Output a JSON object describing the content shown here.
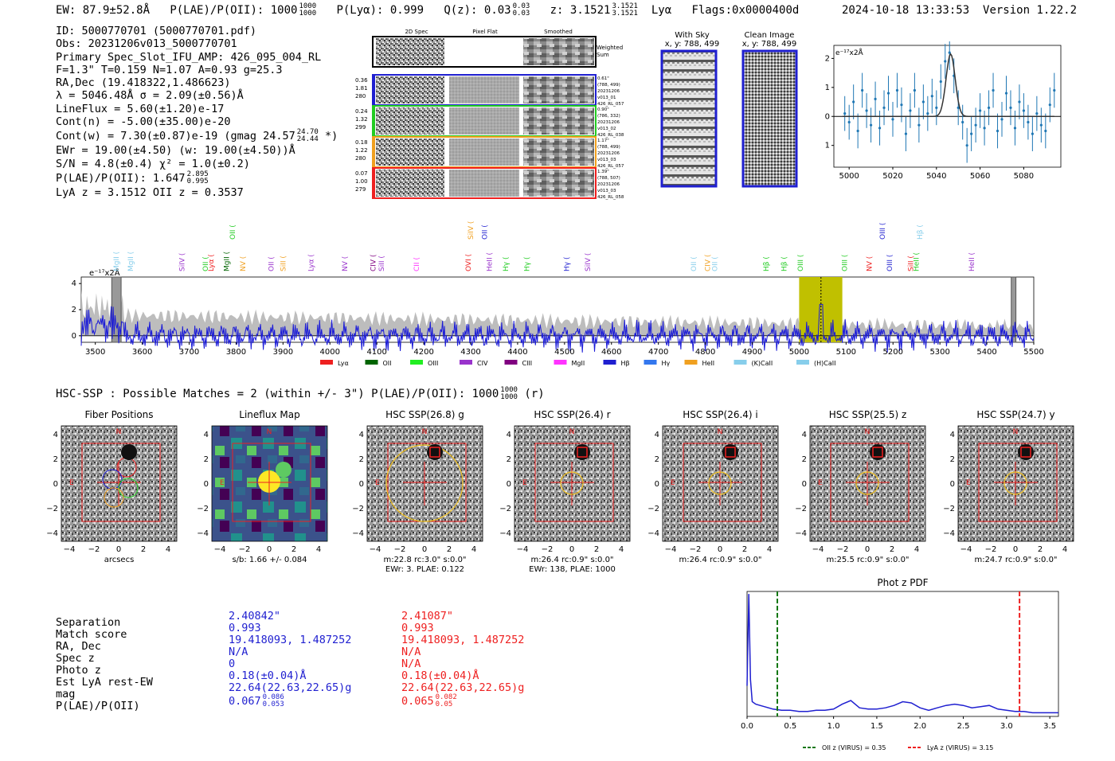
{
  "header": {
    "ew": "EW: 87.9±52.8Å",
    "plae": "P(LAE)/P(OII): 1000",
    "plae_hi": "1000",
    "plae_lo": "1000",
    "plya": "P(Lyα): 0.999",
    "qz": "Q(z): 0.03",
    "qz_hi": "0.03",
    "qz_lo": "0.03",
    "z": "z: 3.1521",
    "z_hi": "3.1521",
    "z_lo": "3.1521",
    "line": "Lyα",
    "flags": "Flags:0x0000400d",
    "timestamp": "2024-10-18 13:33:53",
    "version": "Version 1.22.2"
  },
  "info": {
    "id": "ID: 5000770701 (5000770701.pdf)",
    "obs": "Obs: 20231206v013_5000770701",
    "primary": "Primary Spec_Slot_IFU_AMP: 426_095_004_RL",
    "params": "F=1.3\"  T=0.159  N=1.07  A=0.93  g=25.3",
    "radec": "RA,Dec (19.418322,1.486623)",
    "lambda": "λ = 5046.48Å  σ = 2.09(±0.56)Å",
    "lineflux": "LineFlux = 5.60(±1.20)e-17",
    "contn": "Cont(n) = -5.00(±35.00)e-20",
    "contw": "Cont(w) = 7.30(±0.87)e-19 (gmag 24.57",
    "contw_hi": "24.70",
    "contw_lo": "24.44",
    "contw_end": "*)",
    "ewr": "EWr = 19.00(±4.50) (w: 19.00(±4.50))Å",
    "sn": "S/N = 4.8(±0.4)  χ² = 1.0(±0.2)",
    "plae": "P(LAE)/P(OII): 1.647",
    "plae_hi": "2.895",
    "plae_lo": "0.995",
    "lyaz": "LyA z = 3.1512   OII z = 0.3537"
  },
  "cutouts": {
    "col_2d": "2D Spec",
    "col_flat": "Pixel Flat",
    "col_smooth": "Smoothed",
    "weighted": [
      "Weighted",
      "Sum"
    ],
    "rows": [
      {
        "left": [
          "0.36",
          "1.81",
          "280"
        ],
        "right": [
          "0.61\"",
          "(788, 499)",
          "20231206",
          "v013_01",
          "426_RL_057"
        ],
        "color": "#1f1fd0"
      },
      {
        "left": [
          "0.24",
          "1.32",
          "299"
        ],
        "right": [
          "0.90\"",
          "(786, 332)",
          "20231206",
          "v013_02",
          "426_RL_038"
        ],
        "color": "#22cc22"
      },
      {
        "left": [
          "0.18",
          "1.22",
          "280"
        ],
        "right": [
          "1.17\"",
          "(788, 499)",
          "20231206",
          "v013_03",
          "426_RL_057"
        ],
        "color": "#f0a020"
      },
      {
        "left": [
          "0.07",
          "1.00",
          "279"
        ],
        "right": [
          "1.39\"",
          "(788, 507)",
          "20231206",
          "v013_03",
          "426_RL_058"
        ],
        "color": "#ee2020"
      }
    ]
  },
  "sky": {
    "with_sky": "With Sky",
    "with_sky_xy": "x, y: 788, 499",
    "clean": "Clean Image",
    "clean_xy": "x, y: 788, 499"
  },
  "zoom_chart": {
    "type": "line",
    "unit_label": "e⁻¹⁷x2Å",
    "xlim": [
      4993,
      5097
    ],
    "ylim": [
      -1.75,
      2.45
    ],
    "xticks": [
      "5000",
      "5020",
      "5040",
      "5060",
      "5080"
    ],
    "yticks": [
      "2",
      "1",
      "0",
      "−1"
    ],
    "x": [
      4998,
      5000,
      5002,
      5004,
      5006,
      5008,
      5010,
      5012,
      5014,
      5016,
      5018,
      5020,
      5022,
      5024,
      5026,
      5028,
      5030,
      5032,
      5034,
      5036,
      5038,
      5040,
      5042,
      5044,
      5046,
      5048,
      5050,
      5052,
      5054,
      5056,
      5058,
      5060,
      5062,
      5064,
      5066,
      5068,
      5070,
      5072,
      5074,
      5076,
      5078,
      5080,
      5082,
      5084,
      5086,
      5088,
      5090,
      5092,
      5094
    ],
    "y": [
      0.1,
      -0.2,
      0.5,
      -0.5,
      0.9,
      0.2,
      -0.3,
      0.6,
      -0.4,
      0.3,
      0.8,
      -0.1,
      0.9,
      0.4,
      -0.6,
      0.2,
      0.9,
      -0.3,
      0.5,
      0.1,
      0.7,
      0.3,
      1.2,
      1.9,
      2.2,
      1.4,
      0.3,
      -0.2,
      -1.0,
      -0.6,
      -0.3,
      0.2,
      -0.4,
      0.3,
      0.9,
      -0.5,
      -0.1,
      0.8,
      0.3,
      -0.4,
      0.5,
      0.2,
      -0.2,
      -0.6,
      0.1,
      -0.3,
      -0.5,
      0.4,
      0.9
    ],
    "err": [
      0.6,
      0.6,
      0.6,
      0.6,
      0.6,
      0.6,
      0.6,
      0.6,
      0.6,
      0.6,
      0.6,
      0.6,
      0.6,
      0.6,
      0.6,
      0.6,
      0.6,
      0.6,
      0.6,
      0.6,
      0.6,
      0.6,
      0.6,
      0.6,
      0.6,
      0.6,
      0.6,
      0.6,
      0.6,
      0.6,
      0.6,
      0.6,
      0.6,
      0.6,
      0.6,
      0.6,
      0.6,
      0.6,
      0.6,
      0.6,
      0.6,
      0.6,
      0.6,
      0.6,
      0.6,
      0.6,
      0.6,
      0.6,
      0.6
    ],
    "fit_center": 5046.5,
    "fit_sigma": 2.09,
    "fit_amp": 2.15
  },
  "full_spectrum": {
    "type": "line",
    "unit_label": "e⁻¹⁷x2Å",
    "xlim": [
      3470,
      5500
    ],
    "ylim": [
      -0.5,
      4.5
    ],
    "xticks": [
      "3500",
      "3600",
      "3700",
      "3800",
      "3900",
      "4000",
      "4100",
      "4200",
      "4300",
      "4400",
      "4500",
      "4600",
      "4700",
      "4800",
      "4900",
      "5000",
      "5100",
      "5200",
      "5300",
      "5400",
      "5500"
    ],
    "yticks": [
      "4",
      "2",
      "0"
    ],
    "highlight": [
      5000,
      5092
    ],
    "line_marker": 5046.5,
    "masked": [
      [
        3535,
        3555
      ],
      [
        5452,
        5462
      ]
    ],
    "line_labels": [
      {
        "name": "MgII",
        "x": 3550,
        "color": "#87ceeb",
        "tier": 1
      },
      {
        "name": "MgII",
        "x": 3580,
        "color": "#87ceeb",
        "tier": 1
      },
      {
        "name": "SiIV",
        "x": 3690,
        "color": "#9933cc",
        "tier": 1
      },
      {
        "name": "OII",
        "x": 3740,
        "color": "#22cc22",
        "tier": 1
      },
      {
        "name": "Lyα",
        "x": 3752,
        "color": "#ee2020",
        "tier": 1
      },
      {
        "name": "MgII",
        "x": 3785,
        "color": "#006400",
        "tier": 1
      },
      {
        "name": "OII",
        "x": 3798,
        "color": "#22cc22",
        "tier": 0
      },
      {
        "name": "NV",
        "x": 3820,
        "color": "#f0a020",
        "tier": 1
      },
      {
        "name": "OII",
        "x": 3880,
        "color": "#9933cc",
        "tier": 1
      },
      {
        "name": "SiII",
        "x": 3905,
        "color": "#f0a020",
        "tier": 1
      },
      {
        "name": "Lyα",
        "x": 3965,
        "color": "#9933cc",
        "tier": 1
      },
      {
        "name": "NV",
        "x": 4037,
        "color": "#9933cc",
        "tier": 1
      },
      {
        "name": "CIV",
        "x": 4097,
        "color": "#800080",
        "tier": 1
      },
      {
        "name": "SiII",
        "x": 4115,
        "color": "#9933cc",
        "tier": 1
      },
      {
        "name": "CII",
        "x": 4190,
        "color": "#ff33ff",
        "tier": 1
      },
      {
        "name": "OVI",
        "x": 4300,
        "color": "#ee2020",
        "tier": 1
      },
      {
        "name": "SiIV",
        "x": 4305,
        "color": "#f0a020",
        "tier": 0
      },
      {
        "name": "OII",
        "x": 4335,
        "color": "#1f1fd0",
        "tier": 0
      },
      {
        "name": "HeII",
        "x": 4345,
        "color": "#9933cc",
        "tier": 1
      },
      {
        "name": "Hγ",
        "x": 4380,
        "color": "#22cc22",
        "tier": 1
      },
      {
        "name": "Hγ",
        "x": 4425,
        "color": "#22cc22",
        "tier": 1
      },
      {
        "name": "Hγ",
        "x": 4510,
        "color": "#1f1fd0",
        "tier": 1
      },
      {
        "name": "SiIV",
        "x": 4555,
        "color": "#9933cc",
        "tier": 1
      },
      {
        "name": "OII",
        "x": 4780,
        "color": "#87ceeb",
        "tier": 1
      },
      {
        "name": "CIV",
        "x": 4810,
        "color": "#f0a020",
        "tier": 1
      },
      {
        "name": "OII",
        "x": 4825,
        "color": "#87ceeb",
        "tier": 1
      },
      {
        "name": "Hβ",
        "x": 4935,
        "color": "#22cc22",
        "tier": 1
      },
      {
        "name": "Hβ",
        "x": 4973,
        "color": "#22cc22",
        "tier": 1
      },
      {
        "name": "OIII",
        "x": 5008,
        "color": "#22cc22",
        "tier": 1
      },
      {
        "name": "OIII",
        "x": 5102,
        "color": "#22cc22",
        "tier": 1
      },
      {
        "name": "NV",
        "x": 5155,
        "color": "#ee2020",
        "tier": 1
      },
      {
        "name": "OIII",
        "x": 5183,
        "color": "#1f1fd0",
        "tier": 0
      },
      {
        "name": "OIII",
        "x": 5198,
        "color": "#1f1fd0",
        "tier": 1
      },
      {
        "name": "SiII",
        "x": 5243,
        "color": "#ee2020",
        "tier": 1
      },
      {
        "name": "Hβ",
        "x": 5262,
        "color": "#87ceeb",
        "tier": 0
      },
      {
        "name": "HeII",
        "x": 5255,
        "color": "#22cc22",
        "tier": 1
      },
      {
        "name": "HeII",
        "x": 5373,
        "color": "#9933cc",
        "tier": 1
      }
    ],
    "legend": [
      {
        "name": "Lyα",
        "color": "#ee2020"
      },
      {
        "name": "OII",
        "color": "#006400"
      },
      {
        "name": "OIII",
        "color": "#22ee22"
      },
      {
        "name": "CIV",
        "color": "#9933cc"
      },
      {
        "name": "CIII",
        "color": "#800080"
      },
      {
        "name": "MgII",
        "color": "#ff33ff"
      },
      {
        "name": "Hβ",
        "color": "#1f1fd0"
      },
      {
        "name": "Hγ",
        "color": "#3377ee"
      },
      {
        "name": "HeII",
        "color": "#f0a020"
      },
      {
        "name": "(K)CaII",
        "color": "#87ceeb"
      },
      {
        "name": "(H)CaII",
        "color": "#87ceeb"
      }
    ]
  },
  "hsc": {
    "title": "HSC-SSP : Possible Matches = 2 (within +/- 3\")  P(LAE)/P(OII): 1000",
    "title_hi": "1000",
    "title_lo": "1000",
    "title_end": "(r)",
    "panels": [
      {
        "title": "Fiber Positions",
        "caption1": "arcsecs",
        "caption2": ""
      },
      {
        "title": "Lineflux Map",
        "caption1": "s/b: 1.66 +/- 0.084",
        "caption2": ""
      },
      {
        "title": "HSC SSP(26.8) g",
        "caption1": "m:22.8 rc:3.0\"  s:0.0\"",
        "caption2": "EWr: 3. PLAE: 0.122"
      },
      {
        "title": "HSC SSP(26.4) r",
        "caption1": "m:26.4 rc:0.9\"  s:0.0\"",
        "caption2": "EWr: 138, PLAE: 1000"
      },
      {
        "title": "HSC SSP(26.4) i",
        "caption1": "m:26.4 rc:0.9\"  s:0.0\"",
        "caption2": ""
      },
      {
        "title": "HSC SSP(25.5) z",
        "caption1": "m:25.5 rc:0.9\"  s:0.0\"",
        "caption2": ""
      },
      {
        "title": "HSC SSP(24.7) y",
        "caption1": "m:24.7 rc:0.9\"  s:0.0\"",
        "caption2": ""
      }
    ],
    "ticks": [
      "4",
      "2",
      "0",
      "−2",
      "−4"
    ],
    "xticks": [
      "−4",
      "−2",
      "0",
      "2",
      "4"
    ],
    "north": "N",
    "east": "E"
  },
  "matches": {
    "labels": [
      "Separation",
      "Match score",
      "RA, Dec",
      "Spec z",
      "Photo z",
      "Est LyA rest-EW",
      "mag",
      "P(LAE)/P(OII)"
    ],
    "m1": [
      "2.40842\"",
      "0.993",
      "19.418093, 1.487252",
      "N/A",
      "0",
      "0.18(±0.04)Å",
      "22.64(22.63,22.65)g",
      "0.067"
    ],
    "m1_plae_hi": "0.086",
    "m1_plae_lo": "0.053",
    "m2": [
      "2.41087\"",
      "0.993",
      "19.418093, 1.487252",
      "N/A",
      "N/A",
      "0.18(±0.04)Å",
      "22.64(22.63,22.65)g",
      "0.065"
    ],
    "m2_plae_hi": "0.082",
    "m2_plae_lo": "0.05",
    "m1_color": "#1f1fd0",
    "m2_color": "#ee2020"
  },
  "photz": {
    "type": "line",
    "title": "Phot z PDF",
    "xlim": [
      0,
      3.6
    ],
    "xticks": [
      "0.0",
      "0.5",
      "1.0",
      "1.5",
      "2.0",
      "2.5",
      "3.0",
      "3.5"
    ],
    "oii_z": 0.35,
    "lya_z": 3.15,
    "legend_oii": "OII z (VIRUS) = 0.35",
    "legend_lya": "LyA z (VIRUS) = 3.15",
    "x": [
      0.0,
      0.02,
      0.04,
      0.06,
      0.1,
      0.15,
      0.2,
      0.3,
      0.4,
      0.5,
      0.6,
      0.7,
      0.8,
      0.9,
      1.0,
      1.1,
      1.2,
      1.3,
      1.4,
      1.5,
      1.6,
      1.7,
      1.8,
      1.9,
      2.0,
      2.1,
      2.2,
      2.3,
      2.4,
      2.5,
      2.6,
      2.7,
      2.8,
      2.9,
      3.0,
      3.1,
      3.2,
      3.3,
      3.4,
      3.5,
      3.6
    ],
    "y": [
      0.25,
      1.0,
      0.3,
      0.12,
      0.1,
      0.09,
      0.08,
      0.06,
      0.05,
      0.05,
      0.04,
      0.04,
      0.05,
      0.05,
      0.06,
      0.1,
      0.13,
      0.07,
      0.06,
      0.06,
      0.07,
      0.09,
      0.12,
      0.11,
      0.07,
      0.05,
      0.07,
      0.09,
      0.1,
      0.09,
      0.07,
      0.08,
      0.09,
      0.06,
      0.05,
      0.04,
      0.04,
      0.03,
      0.03,
      0.03,
      0.03
    ]
  }
}
